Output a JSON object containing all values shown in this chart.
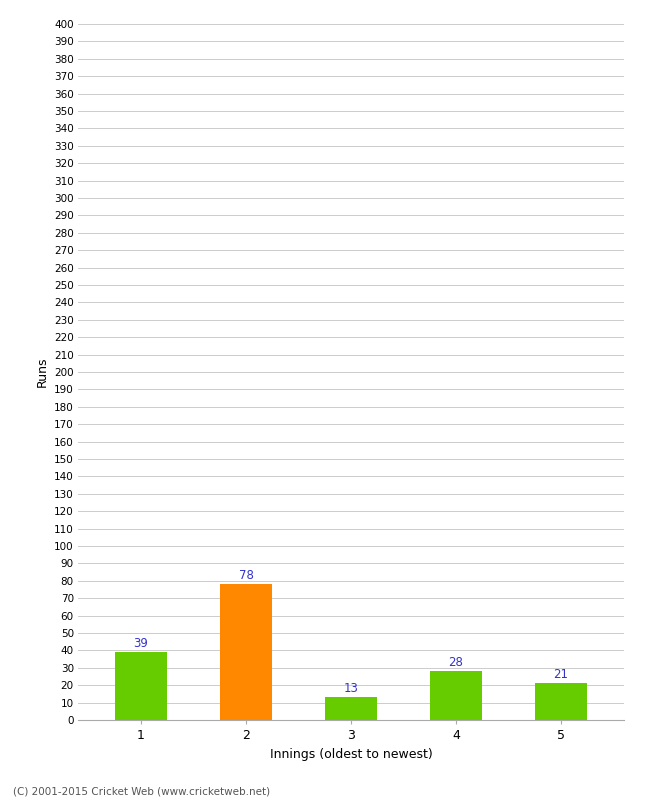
{
  "innings": [
    1,
    2,
    3,
    4,
    5
  ],
  "runs": [
    39,
    78,
    13,
    28,
    21
  ],
  "bar_colors": [
    "#66cc00",
    "#ff8800",
    "#66cc00",
    "#66cc00",
    "#66cc00"
  ],
  "label_color": "#3333cc",
  "xlabel": "Innings (oldest to newest)",
  "ylabel": "Runs",
  "ylim": [
    0,
    400
  ],
  "yticks": [
    0,
    10,
    20,
    30,
    40,
    50,
    60,
    70,
    80,
    90,
    100,
    110,
    120,
    130,
    140,
    150,
    160,
    170,
    180,
    190,
    200,
    210,
    220,
    230,
    240,
    250,
    260,
    270,
    280,
    290,
    300,
    310,
    320,
    330,
    340,
    350,
    360,
    370,
    380,
    390,
    400
  ],
  "background_color": "#ffffff",
  "grid_color": "#cccccc",
  "footer_text": "(C) 2001-2015 Cricket Web (www.cricketweb.net)",
  "bar_width": 0.5
}
